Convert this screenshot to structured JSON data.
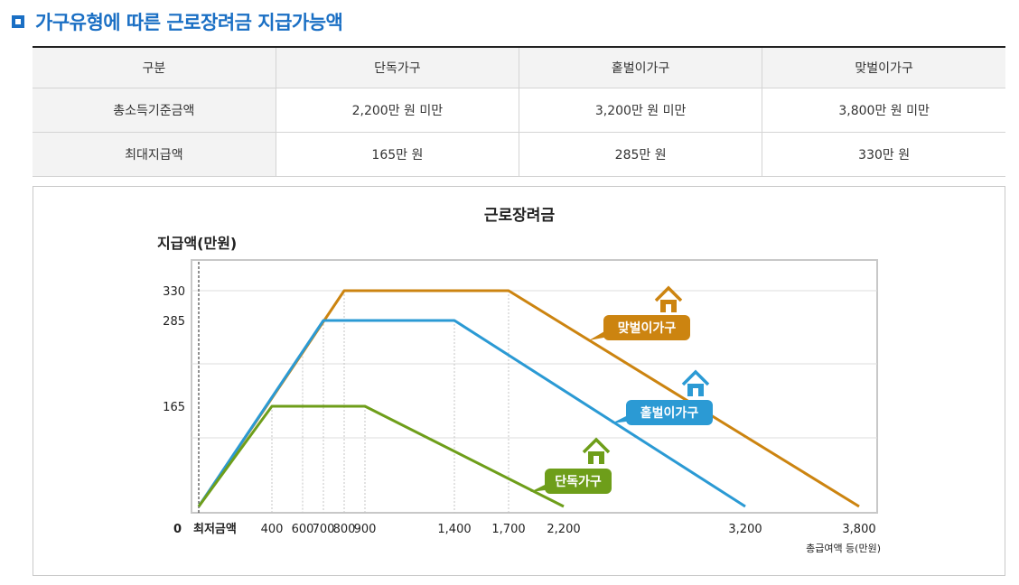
{
  "section_title": "가구유형에 따른 근로장려금 지급가능액",
  "table": {
    "headers": [
      "구분",
      "단독가구",
      "홑벌이가구",
      "맞벌이가구"
    ],
    "rows": [
      [
        "총소득기준금액",
        "2,200만 원 미만",
        "3,200만 원 미만",
        "3,800만 원 미만"
      ],
      [
        "최대지급액",
        "165만 원",
        "285만 원",
        "330만 원"
      ]
    ]
  },
  "chart_data": {
    "type": "line",
    "title": "근로장려금",
    "ylabel": "지급액(만원)",
    "xlabel": "총급여액 등(만원)",
    "x_ticks": [
      "최저금액",
      "400",
      "600",
      "700",
      "800",
      "900",
      "1,400",
      "1,700",
      "2,200",
      "3,200",
      "3,800"
    ],
    "y_ticks": [
      "0",
      "165",
      "285",
      "330"
    ],
    "origin_label": "0",
    "series": [
      {
        "name": "단독가구",
        "color": "#6e9e1a",
        "x": [
          0,
          400,
          900,
          2200
        ],
        "y": [
          0,
          165,
          165,
          0
        ]
      },
      {
        "name": "홑벌이가구",
        "color": "#2b9ad4",
        "x": [
          0,
          700,
          1400,
          3200
        ],
        "y": [
          0,
          285,
          285,
          0
        ]
      },
      {
        "name": "맞벌이가구",
        "color": "#cc8410",
        "x": [
          0,
          600,
          800,
          1700,
          3800
        ],
        "y": [
          0,
          240,
          330,
          330,
          0
        ]
      }
    ],
    "grid": true
  }
}
